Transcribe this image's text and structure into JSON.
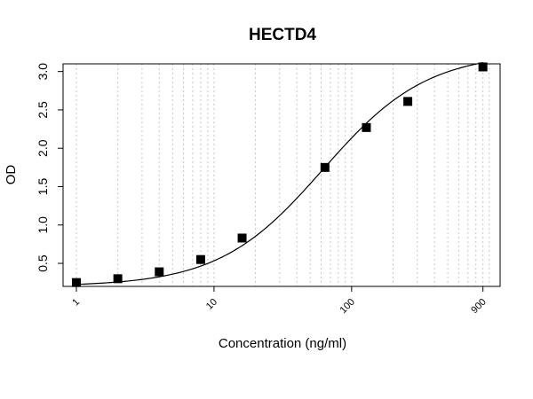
{
  "chart_data": {
    "type": "scatter",
    "title": "HECTD4",
    "xlabel": "Concentration (ng/ml)",
    "ylabel": "OD",
    "x_scale": "log",
    "xlim": [
      0.8,
      1200
    ],
    "ylim": [
      0.2,
      3.1
    ],
    "x_ticks": [
      1,
      10,
      100,
      900
    ],
    "x_tick_labels": [
      "1",
      "10",
      "100",
      "900"
    ],
    "y_ticks": [
      0.5,
      1.0,
      1.5,
      2.0,
      2.5,
      3.0
    ],
    "y_tick_labels": [
      "0.5",
      "1.0",
      "1.5",
      "2.0",
      "2.5",
      "3.0"
    ],
    "grid": "vertical dotted",
    "series": [
      {
        "marker": "square",
        "color": "#000000",
        "x": [
          1,
          2,
          4,
          8,
          16,
          64,
          128,
          256,
          900
        ],
        "y": [
          0.25,
          0.3,
          0.39,
          0.55,
          0.83,
          1.75,
          2.27,
          2.61,
          3.06
        ]
      }
    ],
    "fit_curve": {
      "type": "4PL",
      "color": "#000000"
    }
  }
}
